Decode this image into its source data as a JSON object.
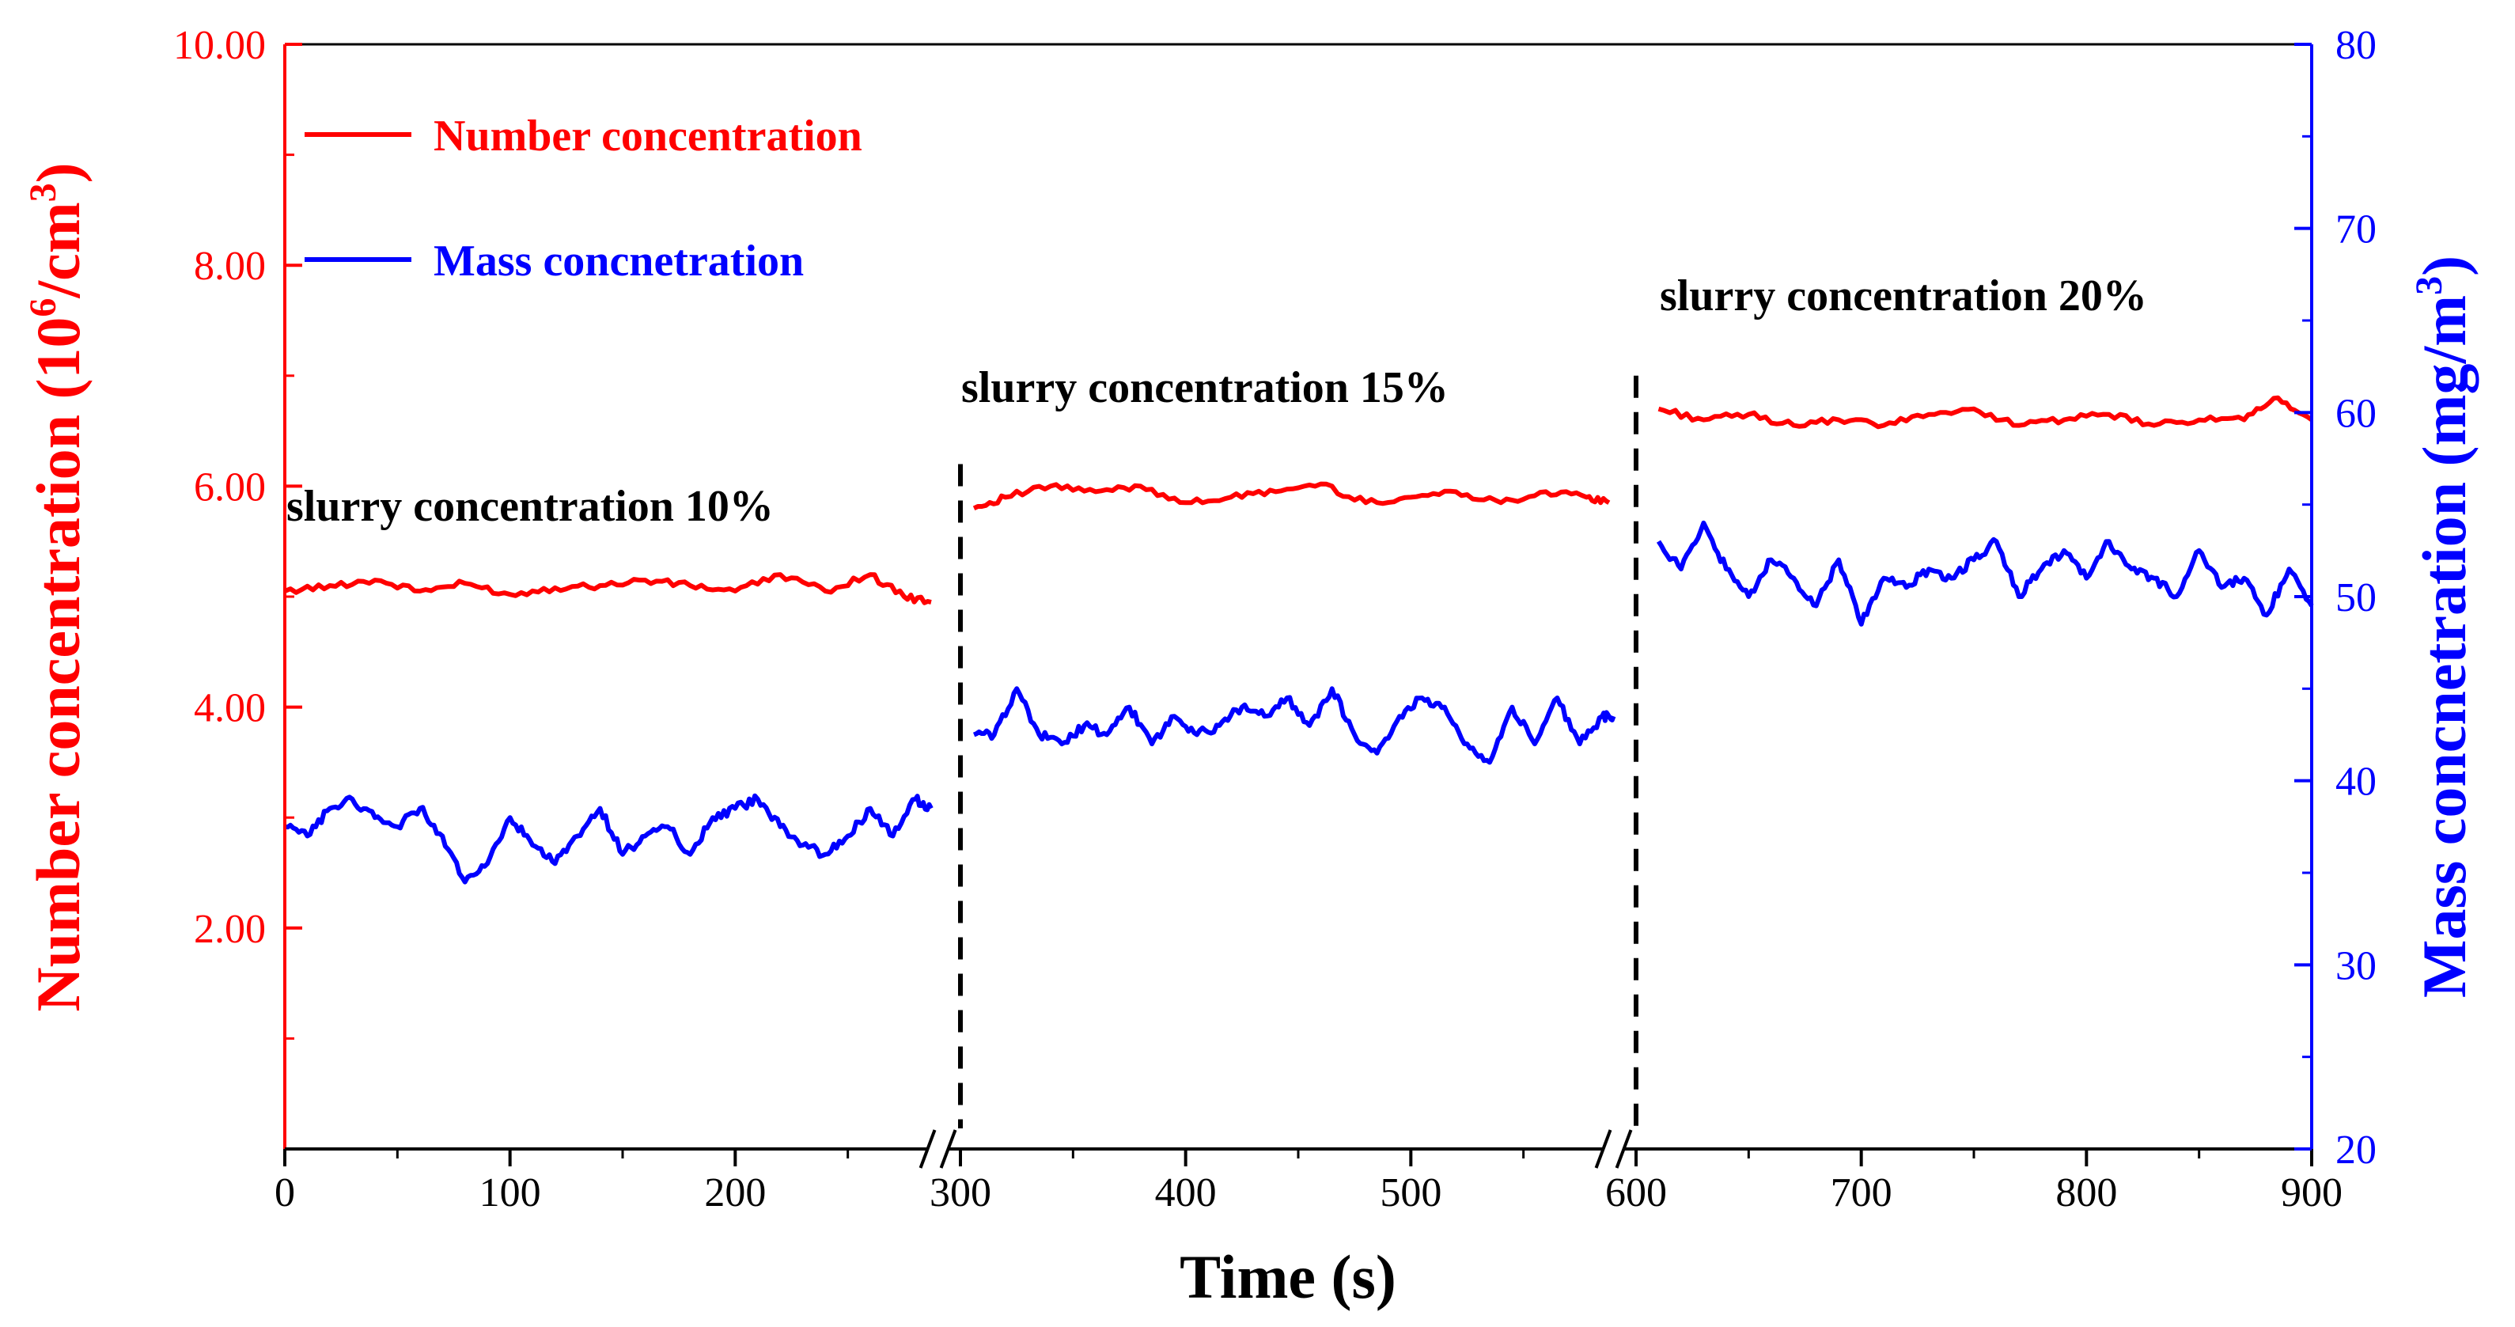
{
  "chart_data": {
    "type": "line",
    "title": "",
    "colors": {
      "number": "#ff0000",
      "mass": "#0000ff",
      "axis": "#000000"
    },
    "x_axis": {
      "label": "Time (s)",
      "range": [
        0,
        900
      ],
      "ticks": [
        "0",
        "100",
        "200",
        "300",
        "400",
        "500",
        "600",
        "700",
        "800",
        "900"
      ],
      "breaks": [
        290,
        590
      ]
    },
    "y_left": {
      "label_main": "Number concentration (10",
      "label_sup1": "6",
      "label_mid": "/cm",
      "label_sup2": "3",
      "label_end": ")",
      "range": [
        0,
        10
      ],
      "ticks": [
        "2.00",
        "4.00",
        "6.00",
        "8.00",
        "10.00"
      ]
    },
    "y_right": {
      "label_main": "Mass concnetration (mg/m",
      "label_sup": "3",
      "label_end": ")",
      "range": [
        20,
        80
      ],
      "ticks": [
        "20",
        "30",
        "40",
        "50",
        "60",
        "70",
        "80"
      ]
    },
    "legend": {
      "position": "top-left",
      "entries": [
        "Number concentration",
        "Mass concnetration"
      ]
    },
    "annotations": [
      "slurry concentration 10%",
      "slurry concentration 15%",
      "slurry concentration 20%"
    ],
    "series": [
      {
        "name": "Number concentration",
        "axis": "left",
        "segments": [
          {
            "x": [
              0,
              20,
              40,
              60,
              80,
              100,
              120,
              140,
              160,
              180,
              200,
              220,
              240,
              260,
              275,
              287
            ],
            "values": [
              5.05,
              5.1,
              5.15,
              5.05,
              5.12,
              5.02,
              5.08,
              5.1,
              5.15,
              5.1,
              5.05,
              5.2,
              5.05,
              5.2,
              5.0,
              4.95
            ]
          },
          {
            "x": [
              306,
              320,
              340,
              360,
              380,
              400,
              420,
              440,
              460,
              480,
              500,
              520,
              540,
              560,
              578,
              588
            ],
            "values": [
              5.8,
              5.9,
              6.0,
              5.95,
              6.0,
              5.85,
              5.9,
              5.95,
              6.02,
              5.85,
              5.9,
              5.95,
              5.85,
              5.95,
              5.9,
              5.85
            ]
          },
          {
            "x": [
              610,
              630,
              650,
              670,
              690,
              710,
              730,
              750,
              770,
              790,
              810,
              830,
              850,
              870,
              885,
              900
            ],
            "values": [
              6.7,
              6.6,
              6.65,
              6.55,
              6.6,
              6.55,
              6.65,
              6.7,
              6.55,
              6.6,
              6.65,
              6.55,
              6.6,
              6.6,
              6.8,
              6.6
            ]
          }
        ]
      },
      {
        "name": "Mass concnetration",
        "axis": "right",
        "segments": [
          {
            "x": [
              0,
              10,
              20,
              30,
              40,
              50,
              60,
              70,
              80,
              90,
              100,
              110,
              120,
              130,
              140,
              150,
              160,
              170,
              180,
              190,
              200,
              210,
              220,
              230,
              240,
              250,
              260,
              270,
              280,
              287
            ],
            "values": [
              37.5,
              37.0,
              38.5,
              39.0,
              38.0,
              37.5,
              38.5,
              37.0,
              34.5,
              35.5,
              38.0,
              36.5,
              35.5,
              37.0,
              38.5,
              36.0,
              37.0,
              37.5,
              36.0,
              38.0,
              38.5,
              39.0,
              37.5,
              36.5,
              36.0,
              37.0,
              38.5,
              37.0,
              39.0,
              38.5
            ]
          },
          {
            "x": [
              306,
              315,
              325,
              335,
              345,
              355,
              365,
              375,
              385,
              395,
              405,
              415,
              425,
              435,
              445,
              455,
              465,
              475,
              485,
              495,
              505,
              515,
              525,
              535,
              545,
              555,
              565,
              575,
              585,
              590
            ],
            "values": [
              42.5,
              42.5,
              45.0,
              42.5,
              42.0,
              43.0,
              42.5,
              44.0,
              42.0,
              43.5,
              42.5,
              43.0,
              44.0,
              43.5,
              44.5,
              43.0,
              45.0,
              42.5,
              41.5,
              43.5,
              44.5,
              44.0,
              42.0,
              41.0,
              44.0,
              42.0,
              44.5,
              42.0,
              43.5,
              43.5
            ]
          },
          {
            "x": [
              610,
              620,
              630,
              640,
              650,
              660,
              670,
              680,
              690,
              700,
              710,
              720,
              730,
              740,
              750,
              760,
              770,
              780,
              790,
              800,
              810,
              820,
              830,
              840,
              850,
              860,
              870,
              880,
              890,
              900
            ],
            "values": [
              53.0,
              51.5,
              54.0,
              51.5,
              50.0,
              52.0,
              51.0,
              49.5,
              52.0,
              48.5,
              51.0,
              50.5,
              51.5,
              51.0,
              52.0,
              53.0,
              50.0,
              51.5,
              52.5,
              51.0,
              53.0,
              51.5,
              51.0,
              50.0,
              52.5,
              50.5,
              51.0,
              49.0,
              51.5,
              49.5
            ]
          }
        ]
      }
    ]
  }
}
